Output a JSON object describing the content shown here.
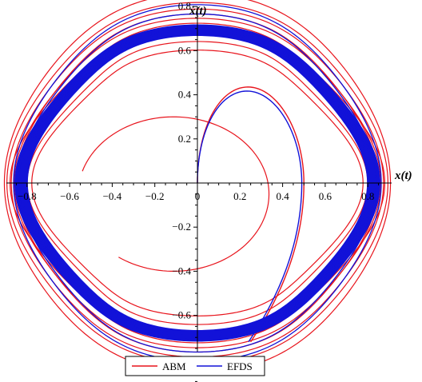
{
  "chart_data": {
    "type": "line",
    "title": "",
    "xlabel": "x(t)",
    "ylabel": "ẋ(t)",
    "xlim": [
      -0.88,
      0.88
    ],
    "ylim": [
      -0.93,
      0.93
    ],
    "x_ticks": [
      "−0.8",
      "−0.6",
      "−0.4",
      "−0.2",
      "0",
      "0.2",
      "0.4",
      "0.6",
      "0.8"
    ],
    "y_ticks": [
      "−0.8",
      "−0.6",
      "−0.4",
      "−0.2",
      "0.2",
      "0.4",
      "0.6",
      "0.8"
    ],
    "grid": false,
    "legend_position": "bottom-center",
    "series": [
      {
        "name": "ABM",
        "color": "#e8141c",
        "description_values": {
          "start": [
            0,
            0
          ],
          "transient_peak": [
            0.25,
            0.47
          ],
          "limit_cycle_x_amplitude": 0.8,
          "limit_cycle_y_amplitude": 0.72,
          "outer_excursion_x": [
            -0.87,
            0.88
          ],
          "outer_excursion_y": [
            -0.89,
            0.88
          ]
        }
      },
      {
        "name": "EFDS",
        "color": "#1212d8",
        "description_values": {
          "start": [
            0,
            0
          ],
          "transient_peak": [
            0.23,
            0.45
          ],
          "limit_cycle_x_amplitude": 0.79,
          "limit_cycle_y_amplitude": 0.71,
          "outer_excursion_x": [
            -0.83,
            0.84
          ],
          "outer_excursion_y": [
            -0.8,
            0.83
          ]
        }
      }
    ]
  }
}
